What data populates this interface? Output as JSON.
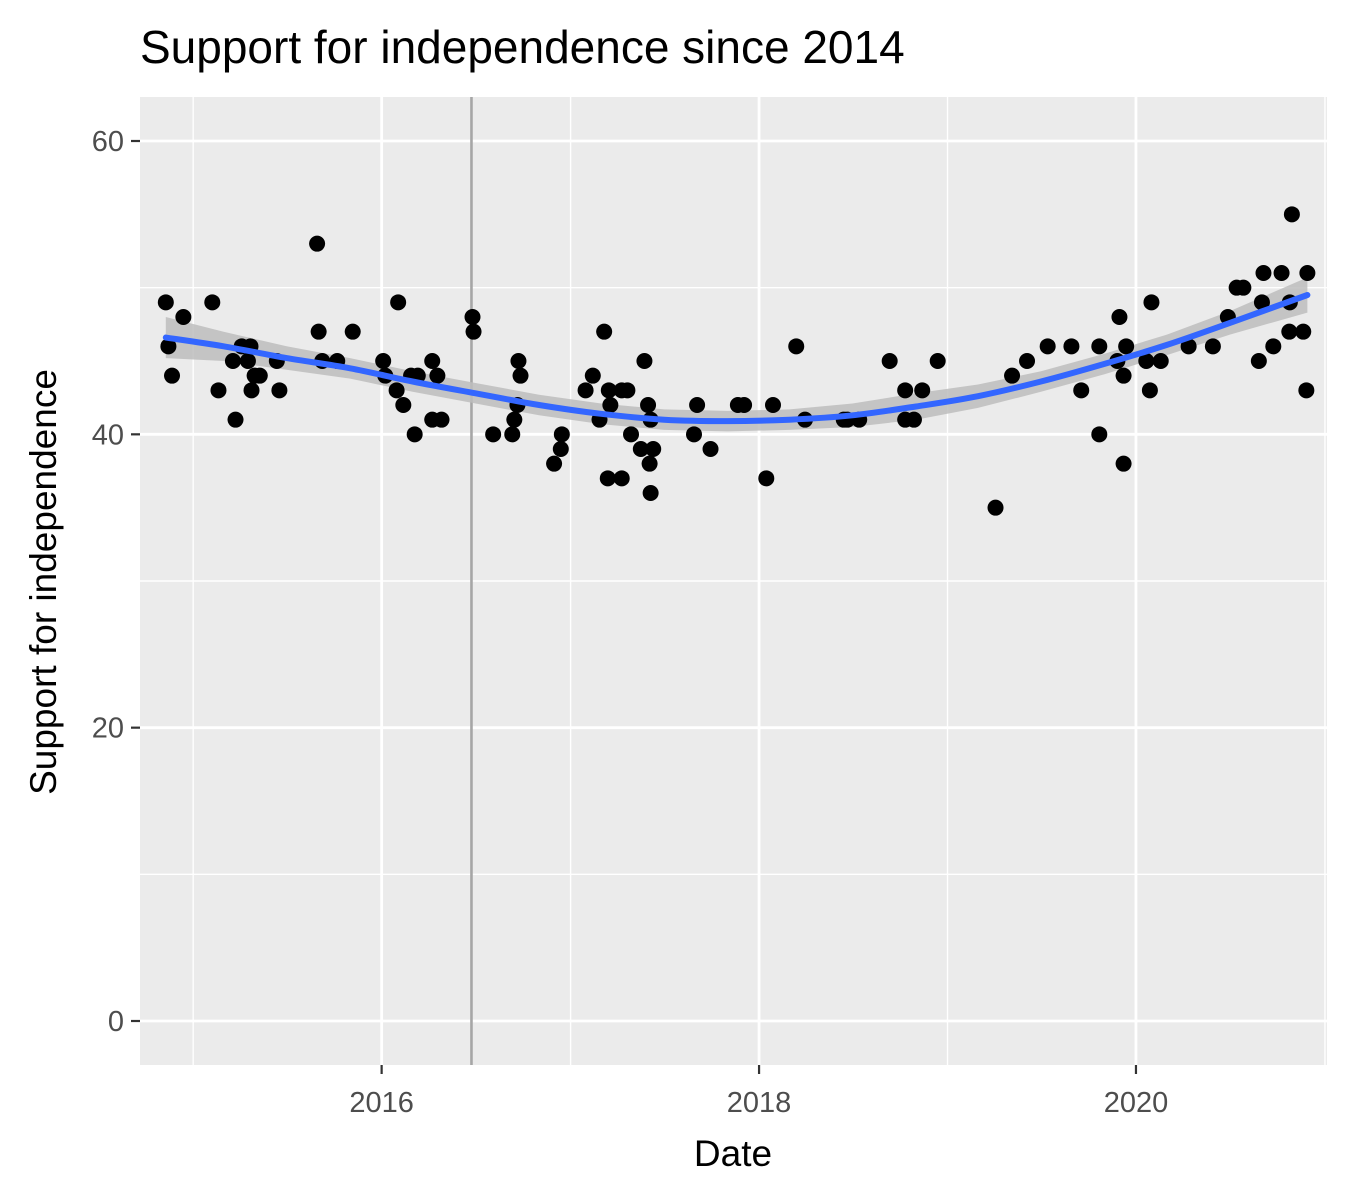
{
  "chart_data": {
    "type": "scatter",
    "title": "Support for independence since 2014",
    "xlabel": "Date",
    "ylabel": "Support for independence",
    "x_type": "date",
    "xlim": [
      "2014-09-20",
      "2021-01-05"
    ],
    "ylim": [
      -3,
      63
    ],
    "x_ticks": [
      {
        "date": "2016-01-01",
        "label": "2016"
      },
      {
        "date": "2018-01-01",
        "label": "2018"
      },
      {
        "date": "2020-01-01",
        "label": "2020"
      }
    ],
    "x_minor_ticks": [
      "2015-01-01",
      "2017-01-01",
      "2019-01-01",
      "2021-01-01"
    ],
    "y_ticks": [
      0,
      20,
      40,
      60
    ],
    "y_tick_labels": [
      "0",
      "20",
      "40",
      "60"
    ],
    "y_minor_ticks": [
      10,
      30,
      50
    ],
    "grid": true,
    "legend": "none",
    "colors": {
      "panel_background": "#ebebeb",
      "grid": "#ffffff",
      "points": "#000000",
      "smooth_line": "#3366ff",
      "confidence_band": "#bdbdbd",
      "reference_line": "#a6a6a6",
      "tick_label": "#4d4d4d"
    },
    "reference_line": {
      "date": "2016-06-23"
    },
    "series": [
      {
        "type": "scatter",
        "points": [
          {
            "x": "2014-11-09",
            "y": 49
          },
          {
            "x": "2014-11-14",
            "y": 46
          },
          {
            "x": "2014-11-21",
            "y": 44
          },
          {
            "x": "2014-12-13",
            "y": 48
          },
          {
            "x": "2015-02-07",
            "y": 49
          },
          {
            "x": "2015-02-19",
            "y": 43
          },
          {
            "x": "2015-03-19",
            "y": 45
          },
          {
            "x": "2015-03-24",
            "y": 41
          },
          {
            "x": "2015-04-05",
            "y": 46
          },
          {
            "x": "2015-04-17",
            "y": 45
          },
          {
            "x": "2015-04-22",
            "y": 46
          },
          {
            "x": "2015-04-24",
            "y": 43
          },
          {
            "x": "2015-04-30",
            "y": 44
          },
          {
            "x": "2015-05-10",
            "y": 44
          },
          {
            "x": "2015-06-12",
            "y": 45
          },
          {
            "x": "2015-06-17",
            "y": 43
          },
          {
            "x": "2015-08-29",
            "y": 53
          },
          {
            "x": "2015-09-01",
            "y": 47
          },
          {
            "x": "2015-09-08",
            "y": 45
          },
          {
            "x": "2015-10-07",
            "y": 45
          },
          {
            "x": "2015-11-06",
            "y": 47
          },
          {
            "x": "2016-01-04",
            "y": 45
          },
          {
            "x": "2016-01-08",
            "y": 44
          },
          {
            "x": "2016-01-30",
            "y": 43
          },
          {
            "x": "2016-02-02",
            "y": 49
          },
          {
            "x": "2016-02-12",
            "y": 42
          },
          {
            "x": "2016-02-27",
            "y": 44
          },
          {
            "x": "2016-03-05",
            "y": 40
          },
          {
            "x": "2016-03-11",
            "y": 44
          },
          {
            "x": "2016-04-08",
            "y": 45
          },
          {
            "x": "2016-04-08",
            "y": 41
          },
          {
            "x": "2016-04-18",
            "y": 44
          },
          {
            "x": "2016-04-26",
            "y": 41
          },
          {
            "x": "2016-06-25",
            "y": 48
          },
          {
            "x": "2016-06-27",
            "y": 47
          },
          {
            "x": "2016-08-04",
            "y": 40
          },
          {
            "x": "2016-09-10",
            "y": 40
          },
          {
            "x": "2016-09-14",
            "y": 41
          },
          {
            "x": "2016-09-20",
            "y": 42
          },
          {
            "x": "2016-09-22",
            "y": 45
          },
          {
            "x": "2016-09-26",
            "y": 44
          },
          {
            "x": "2016-11-30",
            "y": 38
          },
          {
            "x": "2016-12-13",
            "y": 39
          },
          {
            "x": "2016-12-15",
            "y": 40
          },
          {
            "x": "2017-01-30",
            "y": 43
          },
          {
            "x": "2017-02-13",
            "y": 44
          },
          {
            "x": "2017-02-26",
            "y": 41
          },
          {
            "x": "2017-03-07",
            "y": 47
          },
          {
            "x": "2017-03-14",
            "y": 37
          },
          {
            "x": "2017-03-16",
            "y": 43
          },
          {
            "x": "2017-03-19",
            "y": 42
          },
          {
            "x": "2017-04-10",
            "y": 43
          },
          {
            "x": "2017-04-10",
            "y": 37
          },
          {
            "x": "2017-04-21",
            "y": 43
          },
          {
            "x": "2017-04-28",
            "y": 40
          },
          {
            "x": "2017-05-17",
            "y": 39
          },
          {
            "x": "2017-05-24",
            "y": 45
          },
          {
            "x": "2017-05-31",
            "y": 42
          },
          {
            "x": "2017-06-03",
            "y": 38
          },
          {
            "x": "2017-06-05",
            "y": 36
          },
          {
            "x": "2017-06-05",
            "y": 41
          },
          {
            "x": "2017-06-10",
            "y": 39
          },
          {
            "x": "2017-08-28",
            "y": 40
          },
          {
            "x": "2017-09-03",
            "y": 42
          },
          {
            "x": "2017-09-29",
            "y": 39
          },
          {
            "x": "2017-11-21",
            "y": 42
          },
          {
            "x": "2017-12-03",
            "y": 42
          },
          {
            "x": "2018-01-15",
            "y": 37
          },
          {
            "x": "2018-01-28",
            "y": 42
          },
          {
            "x": "2018-03-14",
            "y": 46
          },
          {
            "x": "2018-03-31",
            "y": 41
          },
          {
            "x": "2018-06-14",
            "y": 41
          },
          {
            "x": "2018-06-21",
            "y": 41
          },
          {
            "x": "2018-07-14",
            "y": 41
          },
          {
            "x": "2018-09-11",
            "y": 45
          },
          {
            "x": "2018-10-11",
            "y": 43
          },
          {
            "x": "2018-10-11",
            "y": 41
          },
          {
            "x": "2018-10-28",
            "y": 41
          },
          {
            "x": "2018-11-13",
            "y": 43
          },
          {
            "x": "2018-12-13",
            "y": 45
          },
          {
            "x": "2019-04-04",
            "y": 35
          },
          {
            "x": "2019-05-06",
            "y": 44
          },
          {
            "x": "2019-06-04",
            "y": 45
          },
          {
            "x": "2019-07-14",
            "y": 46
          },
          {
            "x": "2019-08-29",
            "y": 46
          },
          {
            "x": "2019-09-17",
            "y": 43
          },
          {
            "x": "2019-10-22",
            "y": 40
          },
          {
            "x": "2019-10-22",
            "y": 46
          },
          {
            "x": "2019-11-26",
            "y": 45
          },
          {
            "x": "2019-11-30",
            "y": 48
          },
          {
            "x": "2019-12-08",
            "y": 44
          },
          {
            "x": "2019-12-08",
            "y": 38
          },
          {
            "x": "2019-12-13",
            "y": 46
          },
          {
            "x": "2020-01-21",
            "y": 45
          },
          {
            "x": "2020-01-28",
            "y": 43
          },
          {
            "x": "2020-01-31",
            "y": 49
          },
          {
            "x": "2020-02-18",
            "y": 45
          },
          {
            "x": "2020-04-12",
            "y": 46
          },
          {
            "x": "2020-05-29",
            "y": 46
          },
          {
            "x": "2020-06-27",
            "y": 48
          },
          {
            "x": "2020-07-14",
            "y": 50
          },
          {
            "x": "2020-07-27",
            "y": 50
          },
          {
            "x": "2020-08-26",
            "y": 45
          },
          {
            "x": "2020-09-01",
            "y": 49
          },
          {
            "x": "2020-09-04",
            "y": 51
          },
          {
            "x": "2020-09-23",
            "y": 46
          },
          {
            "x": "2020-10-09",
            "y": 51
          },
          {
            "x": "2020-10-24",
            "y": 47
          },
          {
            "x": "2020-10-25",
            "y": 49
          },
          {
            "x": "2020-10-29",
            "y": 55
          },
          {
            "x": "2020-11-20",
            "y": 47
          },
          {
            "x": "2020-11-26",
            "y": 43
          },
          {
            "x": "2020-11-28",
            "y": 51
          }
        ]
      },
      {
        "type": "smooth",
        "points": [
          {
            "x": "2014-11-09",
            "y": 46.6,
            "lo": 45.2,
            "hi": 48.0
          },
          {
            "x": "2015-03-01",
            "y": 46.0,
            "lo": 45.0,
            "hi": 47.0
          },
          {
            "x": "2015-07-01",
            "y": 45.2,
            "lo": 44.4,
            "hi": 46.0
          },
          {
            "x": "2015-11-01",
            "y": 44.5,
            "lo": 43.8,
            "hi": 45.2
          },
          {
            "x": "2016-03-01",
            "y": 43.6,
            "lo": 42.9,
            "hi": 44.3
          },
          {
            "x": "2016-07-01",
            "y": 42.8,
            "lo": 42.1,
            "hi": 43.5
          },
          {
            "x": "2016-11-01",
            "y": 42.0,
            "lo": 41.3,
            "hi": 42.7
          },
          {
            "x": "2017-03-01",
            "y": 41.4,
            "lo": 40.7,
            "hi": 42.1
          },
          {
            "x": "2017-07-01",
            "y": 41.0,
            "lo": 40.3,
            "hi": 41.7
          },
          {
            "x": "2017-11-01",
            "y": 40.9,
            "lo": 40.2,
            "hi": 41.6
          },
          {
            "x": "2018-03-01",
            "y": 41.0,
            "lo": 40.3,
            "hi": 41.7
          },
          {
            "x": "2018-07-01",
            "y": 41.3,
            "lo": 40.5,
            "hi": 42.1
          },
          {
            "x": "2018-11-01",
            "y": 41.9,
            "lo": 41.0,
            "hi": 42.8
          },
          {
            "x": "2019-03-01",
            "y": 42.6,
            "lo": 41.8,
            "hi": 43.4
          },
          {
            "x": "2019-07-01",
            "y": 43.6,
            "lo": 42.9,
            "hi": 44.3
          },
          {
            "x": "2019-11-01",
            "y": 44.8,
            "lo": 44.1,
            "hi": 45.5
          },
          {
            "x": "2020-03-01",
            "y": 46.1,
            "lo": 45.4,
            "hi": 46.8
          },
          {
            "x": "2020-07-01",
            "y": 47.6,
            "lo": 46.8,
            "hi": 48.4
          },
          {
            "x": "2020-11-28",
            "y": 49.5,
            "lo": 48.3,
            "hi": 50.7
          }
        ]
      }
    ]
  }
}
